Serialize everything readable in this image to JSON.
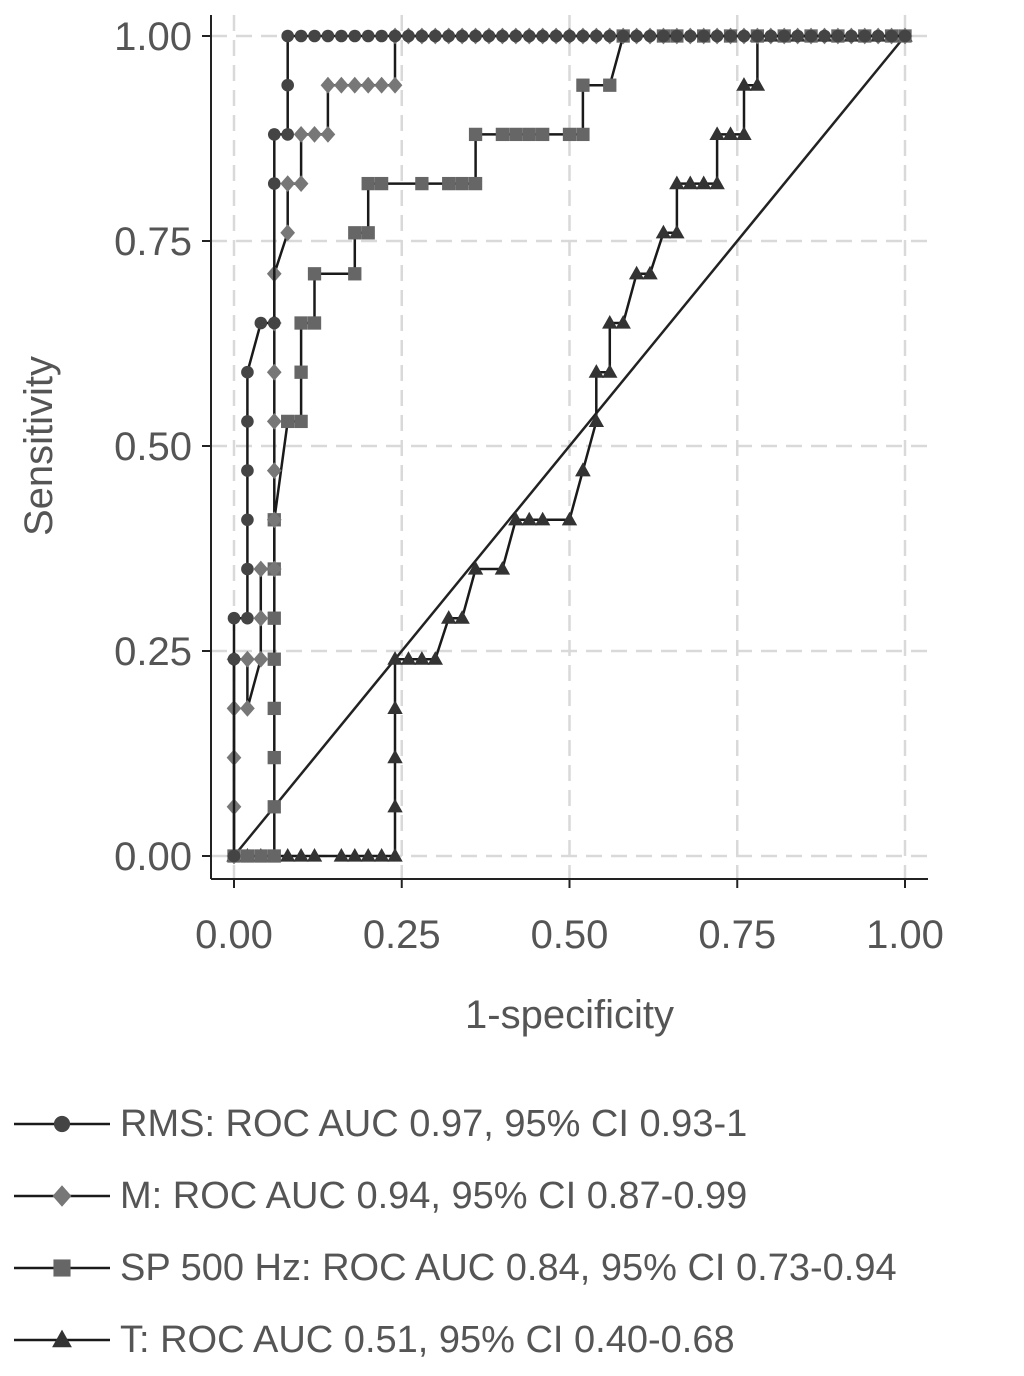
{
  "chart_data": {
    "type": "line",
    "title": "",
    "xlabel": "1-specificity",
    "ylabel": "Sensitivity",
    "xlim": [
      0,
      1
    ],
    "ylim": [
      0,
      1
    ],
    "grid": true,
    "x_ticks": [
      0,
      0.25,
      0.5,
      0.75,
      1
    ],
    "x_tick_labels": [
      "0.00",
      "0.25",
      "0.50",
      "0.75",
      "1.00"
    ],
    "y_ticks": [
      0,
      0.25,
      0.5,
      0.75,
      1
    ],
    "y_tick_labels": [
      "0.00",
      "0.25",
      "0.50",
      "0.75",
      "1.00"
    ],
    "reference_line": {
      "x": [
        0,
        1
      ],
      "y": [
        0,
        1
      ],
      "color": "#222222"
    },
    "series": [
      {
        "name": "RMS",
        "legend": "RMS: ROC AUC 0.97, 95% CI 0.93-1",
        "marker": "circle",
        "color": "#444444",
        "x": [
          0,
          0,
          0,
          0.02,
          0.02,
          0.02,
          0.02,
          0.02,
          0.02,
          0.04,
          0.06,
          0.06,
          0.06,
          0.08,
          0.08,
          0.08,
          0.1,
          0.12,
          0.14,
          0.16,
          0.18,
          0.2,
          0.22,
          0.24,
          0.26,
          0.28,
          0.3,
          0.32,
          0.34,
          0.36,
          0.38,
          0.4,
          0.42,
          0.44,
          0.46,
          0.48,
          0.5,
          0.52,
          0.54,
          0.56,
          0.58,
          0.6,
          0.62,
          0.64,
          0.66,
          0.68,
          0.7,
          0.72,
          0.74,
          0.76,
          0.78,
          0.8,
          0.82,
          0.84,
          0.86,
          0.88,
          0.9,
          0.92,
          0.94,
          0.96,
          0.98,
          1.0
        ],
        "y": [
          0,
          0.24,
          0.29,
          0.29,
          0.35,
          0.41,
          0.47,
          0.53,
          0.59,
          0.65,
          0.65,
          0.82,
          0.88,
          0.88,
          0.94,
          1.0,
          1.0,
          1.0,
          1.0,
          1.0,
          1.0,
          1.0,
          1.0,
          1.0,
          1.0,
          1.0,
          1.0,
          1.0,
          1.0,
          1.0,
          1.0,
          1.0,
          1.0,
          1.0,
          1.0,
          1.0,
          1.0,
          1.0,
          1.0,
          1.0,
          1.0,
          1.0,
          1.0,
          1.0,
          1.0,
          1.0,
          1.0,
          1.0,
          1.0,
          1.0,
          1.0,
          1.0,
          1.0,
          1.0,
          1.0,
          1.0,
          1.0,
          1.0,
          1.0,
          1.0,
          1.0,
          1.0
        ]
      },
      {
        "name": "M",
        "legend": "M: ROC AUC 0.94, 95% CI 0.87-0.99",
        "marker": "diamond",
        "color": "#777777",
        "x": [
          0,
          0,
          0,
          0,
          0,
          0.02,
          0.02,
          0.04,
          0.04,
          0.04,
          0.06,
          0.06,
          0.06,
          0.06,
          0.06,
          0.06,
          0.06,
          0.08,
          0.08,
          0.1,
          0.1,
          0.12,
          0.14,
          0.14,
          0.16,
          0.18,
          0.2,
          0.22,
          0.24,
          0.24,
          0.26,
          0.28,
          0.3,
          0.32,
          0.34,
          0.36,
          0.38,
          0.4,
          0.42,
          0.44,
          0.46,
          0.48,
          0.5,
          0.52,
          0.54,
          0.56,
          0.58,
          0.6,
          0.62,
          0.64,
          0.66,
          0.68,
          0.7,
          0.72,
          0.74,
          0.76,
          0.78,
          0.8,
          0.82,
          0.84,
          0.86,
          0.88,
          0.9,
          0.92,
          0.94,
          0.96,
          0.98,
          1.0
        ],
        "y": [
          0,
          0.06,
          0.12,
          0.18,
          0.24,
          0.24,
          0.18,
          0.24,
          0.29,
          0.35,
          0.35,
          0.41,
          0.47,
          0.53,
          0.59,
          0.65,
          0.71,
          0.76,
          0.82,
          0.82,
          0.88,
          0.88,
          0.88,
          0.94,
          0.94,
          0.94,
          0.94,
          0.94,
          0.94,
          1.0,
          1.0,
          1.0,
          1.0,
          1.0,
          1.0,
          1.0,
          1.0,
          1.0,
          1.0,
          1.0,
          1.0,
          1.0,
          1.0,
          1.0,
          1.0,
          1.0,
          1.0,
          1.0,
          1.0,
          1.0,
          1.0,
          1.0,
          1.0,
          1.0,
          1.0,
          1.0,
          1.0,
          1.0,
          1.0,
          1.0,
          1.0,
          1.0,
          1.0,
          1.0,
          1.0,
          1.0,
          1.0,
          1.0
        ]
      },
      {
        "name": "SP 500 Hz",
        "legend": "SP 500 Hz: ROC AUC 0.84, 95% CI 0.73-0.94",
        "marker": "square",
        "color": "#666666",
        "x": [
          0,
          0.02,
          0.04,
          0.06,
          0.06,
          0.06,
          0.06,
          0.06,
          0.06,
          0.06,
          0.06,
          0.08,
          0.1,
          0.1,
          0.1,
          0.12,
          0.12,
          0.18,
          0.18,
          0.2,
          0.2,
          0.22,
          0.28,
          0.32,
          0.34,
          0.36,
          0.36,
          0.4,
          0.42,
          0.44,
          0.46,
          0.5,
          0.52,
          0.52,
          0.56,
          0.58,
          0.64,
          0.66,
          0.7,
          0.74,
          0.78,
          0.82,
          0.86,
          0.9,
          0.94,
          0.98,
          1.0
        ],
        "y": [
          0,
          0,
          0,
          0,
          0.06,
          0.12,
          0.18,
          0.24,
          0.29,
          0.35,
          0.41,
          0.53,
          0.53,
          0.59,
          0.65,
          0.65,
          0.71,
          0.71,
          0.76,
          0.76,
          0.82,
          0.82,
          0.82,
          0.82,
          0.82,
          0.82,
          0.88,
          0.88,
          0.88,
          0.88,
          0.88,
          0.88,
          0.88,
          0.94,
          0.94,
          1.0,
          1.0,
          1.0,
          1.0,
          1.0,
          1.0,
          1.0,
          1.0,
          1.0,
          1.0,
          1.0,
          1.0
        ]
      },
      {
        "name": "T",
        "legend": "T: ROC AUC 0.51, 95% CI 0.40-0.68",
        "marker": "triangle",
        "color": "#333333",
        "x": [
          0,
          0.02,
          0.04,
          0.06,
          0.08,
          0.1,
          0.12,
          0.16,
          0.18,
          0.2,
          0.22,
          0.24,
          0.24,
          0.24,
          0.24,
          0.24,
          0.26,
          0.28,
          0.3,
          0.32,
          0.34,
          0.36,
          0.4,
          0.42,
          0.44,
          0.46,
          0.5,
          0.52,
          0.52,
          0.54,
          0.54,
          0.56,
          0.56,
          0.58,
          0.6,
          0.62,
          0.64,
          0.66,
          0.66,
          0.68,
          0.7,
          0.72,
          0.72,
          0.74,
          0.76,
          0.76,
          0.78,
          0.78,
          0.8,
          0.82,
          0.84,
          0.86,
          0.88,
          0.9,
          0.92,
          0.94,
          0.96,
          0.98,
          1.0
        ],
        "y": [
          0,
          0,
          0,
          0,
          0,
          0,
          0,
          0,
          0,
          0,
          0,
          0,
          0.06,
          0.12,
          0.18,
          0.24,
          0.24,
          0.24,
          0.24,
          0.29,
          0.29,
          0.35,
          0.35,
          0.41,
          0.41,
          0.41,
          0.41,
          0.47,
          0.47,
          0.53,
          0.59,
          0.59,
          0.65,
          0.65,
          0.71,
          0.71,
          0.76,
          0.76,
          0.82,
          0.82,
          0.82,
          0.82,
          0.88,
          0.88,
          0.88,
          0.94,
          0.94,
          1.0,
          1.0,
          1.0,
          1.0,
          1.0,
          1.0,
          1.0,
          1.0,
          1.0,
          1.0,
          1.0,
          1.0
        ]
      }
    ]
  }
}
